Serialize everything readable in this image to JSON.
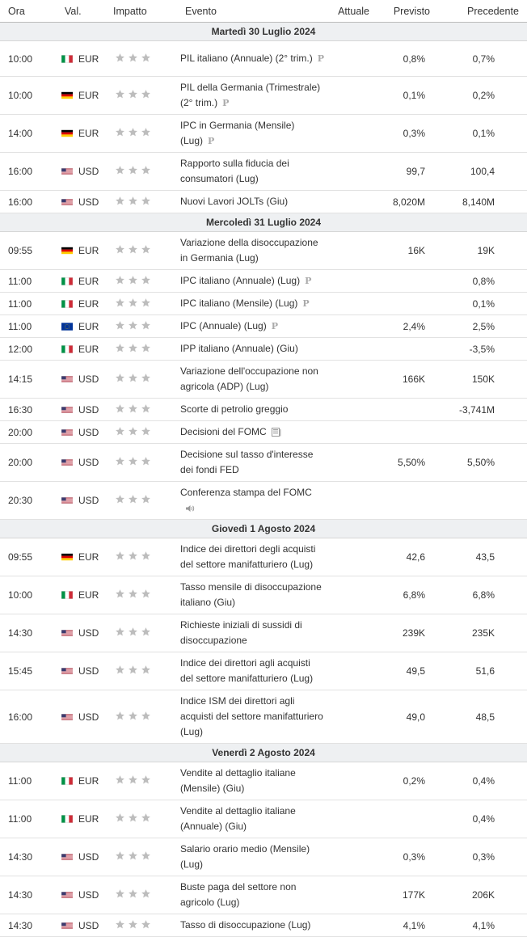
{
  "header": {
    "time": "Ora",
    "currency": "Val.",
    "impact": "Impatto",
    "event": "Evento",
    "actual": "Attuale",
    "forecast": "Previsto",
    "previous": "Precedente"
  },
  "prelim_marker": "P",
  "days": [
    {
      "label": "Martedì 30 Luglio 2024",
      "events": [
        {
          "time": "10:00",
          "flag": "it",
          "currency": "EUR",
          "event": "PIL italiano (Annuale) (2° trim.)",
          "marker": "prelim",
          "actual": "",
          "forecast": "0,8%",
          "previous": "0,7%",
          "h": 44
        },
        {
          "time": "10:00",
          "flag": "de",
          "currency": "EUR",
          "event": "PIL della Germania (Trimestrale) (2° trim.)",
          "marker": "prelim",
          "actual": "",
          "forecast": "0,1%",
          "previous": "0,2%",
          "h": 43
        },
        {
          "time": "14:00",
          "flag": "de",
          "currency": "EUR",
          "event": "IPC in Germania (Mensile) (Lug)",
          "marker": "prelim",
          "actual": "",
          "forecast": "0,3%",
          "previous": "0,1%",
          "h": 43
        },
        {
          "time": "16:00",
          "flag": "us",
          "currency": "USD",
          "event": "Rapporto sulla fiducia dei consumatori (Lug)",
          "marker": "",
          "actual": "",
          "forecast": "99,7",
          "previous": "100,4",
          "h": 43
        },
        {
          "time": "16:00",
          "flag": "us",
          "currency": "USD",
          "event": "Nuovi Lavori JOLTs (Giu)",
          "marker": "",
          "actual": "",
          "forecast": "8,020M",
          "previous": "8,140M",
          "h": 27
        }
      ]
    },
    {
      "label": "Mercoledì 31 Luglio 2024",
      "events": [
        {
          "time": "09:55",
          "flag": "de",
          "currency": "EUR",
          "event": "Variazione della disoccupazione in Germania (Lug)",
          "marker": "",
          "actual": "",
          "forecast": "16K",
          "previous": "19K",
          "h": 44
        },
        {
          "time": "11:00",
          "flag": "it",
          "currency": "EUR",
          "event": "IPC italiano (Annuale) (Lug)",
          "marker": "prelim",
          "actual": "",
          "forecast": "",
          "previous": "0,8%",
          "h": 26
        },
        {
          "time": "11:00",
          "flag": "it",
          "currency": "EUR",
          "event": "IPC italiano (Mensile) (Lug)",
          "marker": "prelim",
          "actual": "",
          "forecast": "",
          "previous": "0,1%",
          "h": 26
        },
        {
          "time": "11:00",
          "flag": "eu",
          "currency": "EUR",
          "event": "IPC (Annuale) (Lug)",
          "marker": "prelim",
          "actual": "",
          "forecast": "2,4%",
          "previous": "2,5%",
          "h": 26
        },
        {
          "time": "12:00",
          "flag": "it",
          "currency": "EUR",
          "event": "IPP italiano (Annuale) (Giu)",
          "marker": "",
          "actual": "",
          "forecast": "",
          "previous": "-3,5%",
          "h": 26
        },
        {
          "time": "14:15",
          "flag": "us",
          "currency": "USD",
          "event": "Variazione dell'occupazione non agricola (ADP) (Lug)",
          "marker": "",
          "actual": "",
          "forecast": "166K",
          "previous": "150K",
          "h": 43
        },
        {
          "time": "16:30",
          "flag": "us",
          "currency": "USD",
          "event": "Scorte di petrolio greggio",
          "marker": "",
          "actual": "",
          "forecast": "",
          "previous": "-3,741M",
          "h": 26
        },
        {
          "time": "20:00",
          "flag": "us",
          "currency": "USD",
          "event": "Decisioni del FOMC",
          "marker": "doc",
          "actual": "",
          "forecast": "",
          "previous": "",
          "h": 26
        },
        {
          "time": "20:00",
          "flag": "us",
          "currency": "USD",
          "event": "Decisione sul tasso d'interesse dei fondi FED",
          "marker": "",
          "actual": "",
          "forecast": "5,50%",
          "previous": "5,50%",
          "h": 43
        },
        {
          "time": "20:30",
          "flag": "us",
          "currency": "USD",
          "event": "Conferenza stampa del FOMC",
          "marker": "speaker",
          "actual": "",
          "forecast": "",
          "previous": "",
          "h": 44
        }
      ]
    },
    {
      "label": "Giovedì 1 Agosto 2024",
      "events": [
        {
          "time": "09:55",
          "flag": "de",
          "currency": "EUR",
          "event": "Indice dei direttori degli acquisti del settore manifatturiero (Lug)",
          "marker": "",
          "actual": "",
          "forecast": "42,6",
          "previous": "43,5",
          "h": 43
        },
        {
          "time": "10:00",
          "flag": "it",
          "currency": "EUR",
          "event": "Tasso mensile di disoccupazione italiano (Giu)",
          "marker": "",
          "actual": "",
          "forecast": "6,8%",
          "previous": "6,8%",
          "h": 43
        },
        {
          "time": "14:30",
          "flag": "us",
          "currency": "USD",
          "event": "Richieste iniziali di sussidi di disoccupazione",
          "marker": "",
          "actual": "",
          "forecast": "239K",
          "previous": "235K",
          "h": 43
        },
        {
          "time": "15:45",
          "flag": "us",
          "currency": "USD",
          "event": "Indice dei direttori agli acquisti del settore manifatturiero (Lug)",
          "marker": "",
          "actual": "",
          "forecast": "49,5",
          "previous": "51,6",
          "h": 43
        },
        {
          "time": "16:00",
          "flag": "us",
          "currency": "USD",
          "event": "Indice ISM dei direttori agli acquisti del settore manifatturiero (Lug)",
          "marker": "",
          "actual": "",
          "forecast": "49,0",
          "previous": "48,5",
          "h": 62
        }
      ]
    },
    {
      "label": "Venerdì 2 Agosto 2024",
      "events": [
        {
          "time": "11:00",
          "flag": "it",
          "currency": "EUR",
          "event": "Vendite al dettaglio italiane (Mensile) (Giu)",
          "marker": "",
          "actual": "",
          "forecast": "0,2%",
          "previous": "0,4%",
          "h": 43
        },
        {
          "time": "11:00",
          "flag": "it",
          "currency": "EUR",
          "event": "Vendite al dettaglio italiane (Annuale) (Giu)",
          "marker": "",
          "actual": "",
          "forecast": "",
          "previous": "0,4%",
          "h": 43
        },
        {
          "time": "14:30",
          "flag": "us",
          "currency": "USD",
          "event": "Salario orario medio (Mensile) (Lug)",
          "marker": "",
          "actual": "",
          "forecast": "0,3%",
          "previous": "0,3%",
          "h": 43
        },
        {
          "time": "14:30",
          "flag": "us",
          "currency": "USD",
          "event": "Buste paga del settore non agricolo (Lug)",
          "marker": "",
          "actual": "",
          "forecast": "177K",
          "previous": "206K",
          "h": 43
        },
        {
          "time": "14:30",
          "flag": "us",
          "currency": "USD",
          "event": "Tasso di disoccupazione (Lug)",
          "marker": "",
          "actual": "",
          "forecast": "4,1%",
          "previous": "4,1%",
          "h": 26
        }
      ]
    }
  ]
}
